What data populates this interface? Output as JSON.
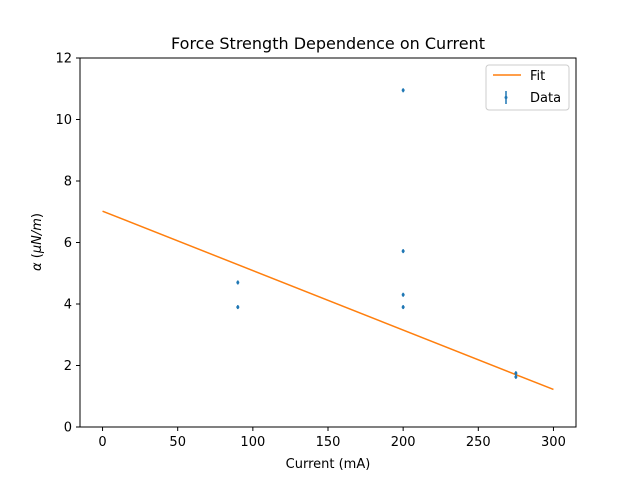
{
  "chart_data": {
    "type": "scatter",
    "title": "Force Strength Dependence on Current",
    "xlabel": "Current (mA)",
    "ylabel": {
      "alpha": "α",
      "open": " (",
      "unit": "μN/m",
      "close": ")"
    },
    "xlim": [
      -15,
      315
    ],
    "ylim": [
      0,
      12
    ],
    "xticks": [
      0,
      50,
      100,
      150,
      200,
      250,
      300
    ],
    "yticks": [
      0,
      2,
      4,
      6,
      8,
      10,
      12
    ],
    "grid": false,
    "legend_position": "top-right",
    "series": [
      {
        "name": "Fit",
        "kind": "line",
        "color": "#ff7f0e",
        "x": [
          0,
          300
        ],
        "y": [
          7.02,
          1.22
        ]
      },
      {
        "name": "Data",
        "kind": "errorbar-points",
        "color": "#1f77b4",
        "x": [
          90,
          90,
          200,
          200,
          200,
          200,
          275,
          275
        ],
        "y": [
          4.7,
          3.9,
          10.95,
          5.72,
          4.3,
          3.9,
          1.75,
          1.63
        ]
      }
    ]
  }
}
